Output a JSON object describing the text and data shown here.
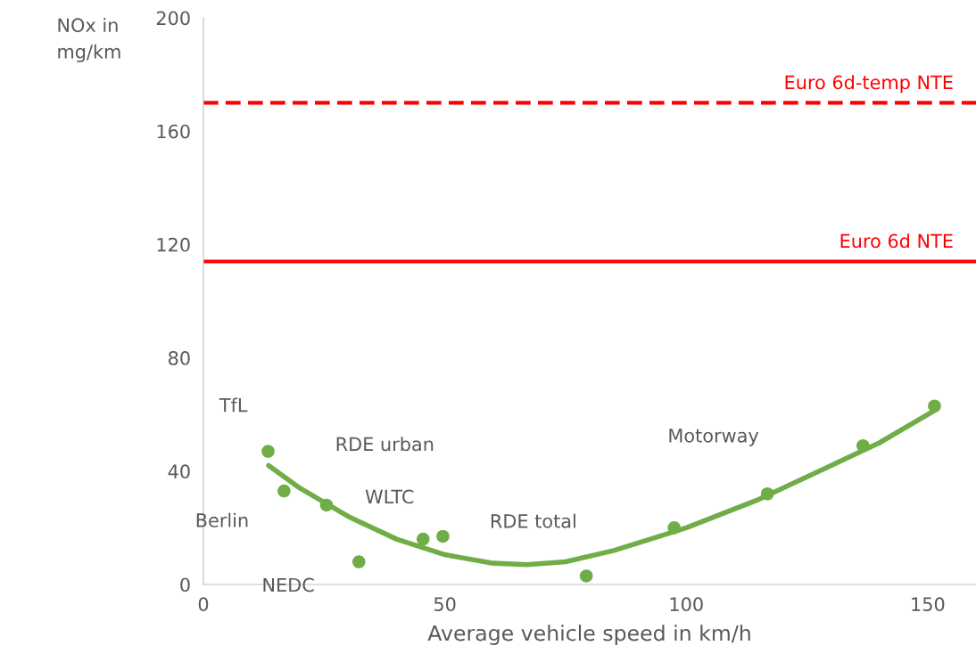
{
  "chart_data": {
    "type": "scatter",
    "xlabel": "Average vehicle speed in km/h",
    "ylabel": "NOx in\nmg/km",
    "xlim": [
      0,
      160
    ],
    "xticks": [
      0,
      50,
      100,
      150
    ],
    "ylim": [
      0,
      200
    ],
    "yticks": [
      0,
      40,
      80,
      120,
      160,
      200
    ],
    "grid": false,
    "marker": "circle",
    "series": [
      {
        "color": "#70ad47",
        "x": [
          13.4,
          16.7,
          25.5,
          32.2,
          45.5,
          49.6,
          79.3,
          97.5,
          116.8,
          136.6,
          151.4
        ],
        "values": [
          47,
          33,
          28,
          8,
          16,
          17,
          3,
          20,
          32,
          49,
          63
        ]
      },
      {
        "type": "line",
        "color": "#70ad47",
        "marker": "none",
        "line_style": "solid",
        "x": [
          13.5,
          20,
          30,
          40,
          50,
          60,
          67,
          75,
          85,
          100,
          115,
          130,
          140,
          152
        ],
        "values": [
          42,
          34,
          24,
          16,
          10.5,
          7.5,
          7,
          8,
          12,
          20,
          30,
          42,
          50,
          62
        ]
      }
    ],
    "ref_lines": [
      {
        "axis": "y",
        "value": 170,
        "label": "Euro 6d-temp NTE",
        "color": "#ff0000",
        "line_style": "dashed"
      },
      {
        "axis": "y",
        "value": 114,
        "label": "Euro 6d NTE",
        "color": "#ff0000",
        "line_style": "solid"
      }
    ],
    "annotations": [
      {
        "text": "TfL",
        "x": 13.4,
        "y": 47
      },
      {
        "text": "Berlin",
        "x": 16.7,
        "y": 33
      },
      {
        "text": "RDE urban",
        "x": 25.5,
        "y": 28
      },
      {
        "text": "NEDC",
        "x": 32.2,
        "y": 8
      },
      {
        "text": "WLTC",
        "x": 45.5,
        "y": 16
      },
      {
        "text": "RDE total",
        "x": 49.6,
        "y": 17
      },
      "Motorway"
    ]
  }
}
